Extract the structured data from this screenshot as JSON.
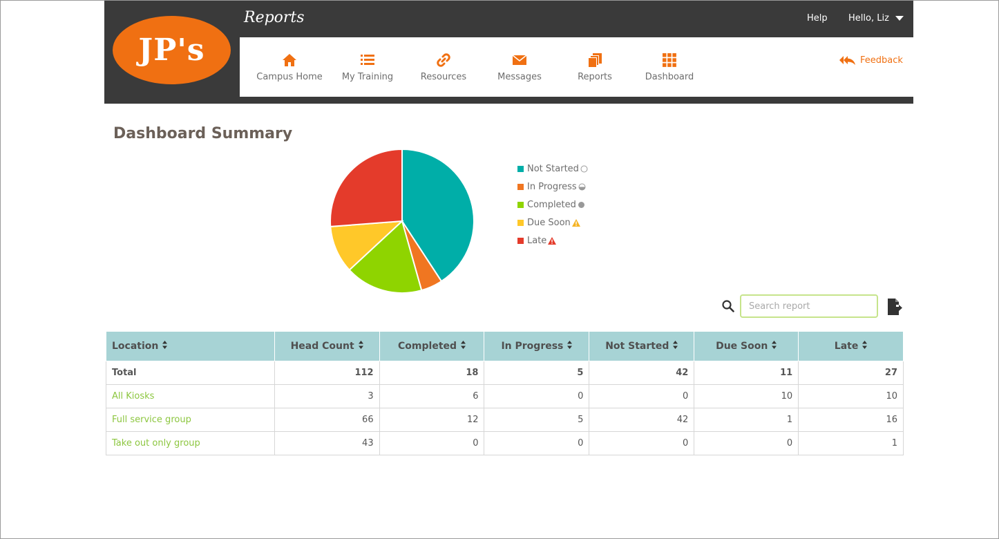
{
  "header": {
    "logo_text": "JP's",
    "title": "Reports",
    "help_label": "Help",
    "user_greeting": "Hello, Liz"
  },
  "nav": {
    "items": [
      {
        "label": "Campus Home",
        "icon": "home-icon"
      },
      {
        "label": "My Training",
        "icon": "list-icon"
      },
      {
        "label": "Resources",
        "icon": "link-icon"
      },
      {
        "label": "Messages",
        "icon": "envelope-icon"
      },
      {
        "label": "Reports",
        "icon": "copy-icon"
      },
      {
        "label": "Dashboard",
        "icon": "grid-icon"
      }
    ],
    "feedback_label": "Feedback"
  },
  "summary": {
    "title": "Dashboard Summary"
  },
  "chart_data": {
    "type": "pie",
    "categories": [
      "Not Started",
      "In Progress",
      "Completed",
      "Due Soon",
      "Late"
    ],
    "values": [
      42,
      5,
      18,
      11,
      27
    ],
    "colors": [
      "#00aea8",
      "#f07621",
      "#8fd400",
      "#ffc829",
      "#e43b2b"
    ],
    "legend_position": "right"
  },
  "legend": {
    "items": [
      {
        "label": "Not Started",
        "color": "#00aea8",
        "icon": "circle-empty-icon"
      },
      {
        "label": "In Progress",
        "color": "#f07621",
        "icon": "circle-half-icon"
      },
      {
        "label": "Completed",
        "color": "#8fd400",
        "icon": "circle-full-icon"
      },
      {
        "label": "Due Soon",
        "color": "#ffc829",
        "icon": "warning-yellow-icon"
      },
      {
        "label": "Late",
        "color": "#e43b2b",
        "icon": "warning-red-icon"
      }
    ]
  },
  "search": {
    "placeholder": "Search report",
    "value": ""
  },
  "table": {
    "headers": [
      "Location",
      "Head Count",
      "Completed",
      "In Progress",
      "Not Started",
      "Due Soon",
      "Late"
    ],
    "rows": [
      [
        "Total",
        "112",
        "18",
        "5",
        "42",
        "11",
        "27"
      ],
      [
        "All Kiosks",
        "3",
        "6",
        "0",
        "0",
        "10",
        "10"
      ],
      [
        "Full service group",
        "66",
        "12",
        "5",
        "42",
        "1",
        "16"
      ],
      [
        "Take out only group",
        "43",
        "0",
        "0",
        "0",
        "0",
        "1"
      ]
    ]
  },
  "colors": {
    "accent": "#f07012",
    "header_bg": "#3a3a3a",
    "table_header_bg": "#a7d3d5",
    "link_green": "#8cc63f"
  }
}
